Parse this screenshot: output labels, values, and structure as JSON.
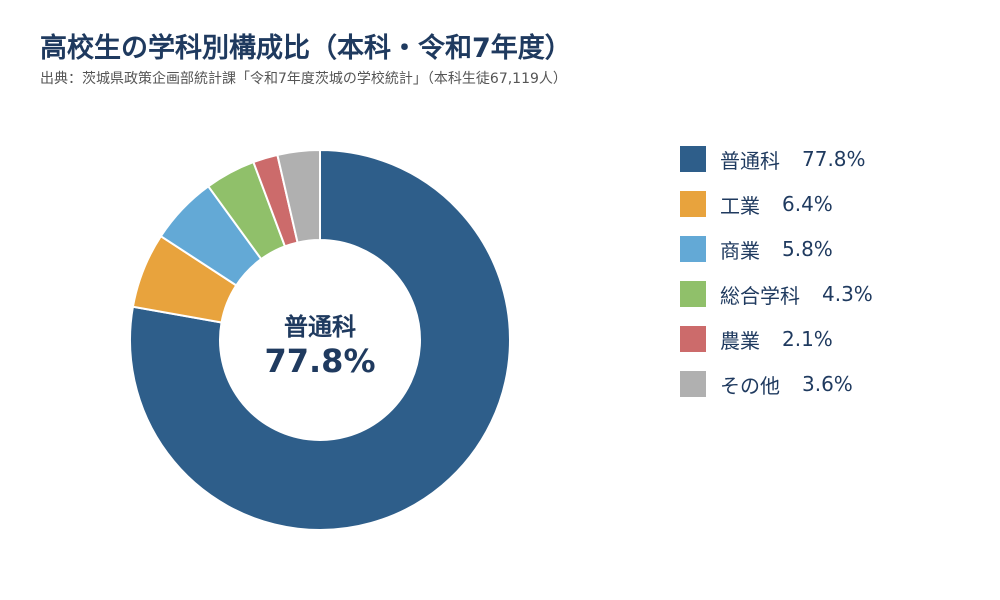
{
  "header": {
    "title": "高校生の学科別構成比（本科・令和7年度）",
    "subtitle": "出典：茨城県政策企画部統計課「令和7年度茨城の学校統計」（本科生徒67,119人）"
  },
  "center_label": {
    "name": "普通科",
    "value": "77.8%"
  },
  "chart_data": {
    "type": "pie",
    "style": "donut",
    "categories": [
      "普通科",
      "工業",
      "商業",
      "総合学科",
      "農業",
      "その他"
    ],
    "values": [
      77.8,
      6.4,
      5.8,
      4.3,
      2.1,
      3.6
    ],
    "value_labels": [
      "77.8%",
      "6.4%",
      "5.8%",
      "4.3%",
      "2.1%",
      "3.6%"
    ],
    "colors": [
      "#2e5e8a",
      "#e8a33d",
      "#63a9d6",
      "#90c06a",
      "#cc6b6b",
      "#b0b0b0"
    ],
    "legend_position": "right",
    "start_angle": "top",
    "direction": "clockwise"
  }
}
